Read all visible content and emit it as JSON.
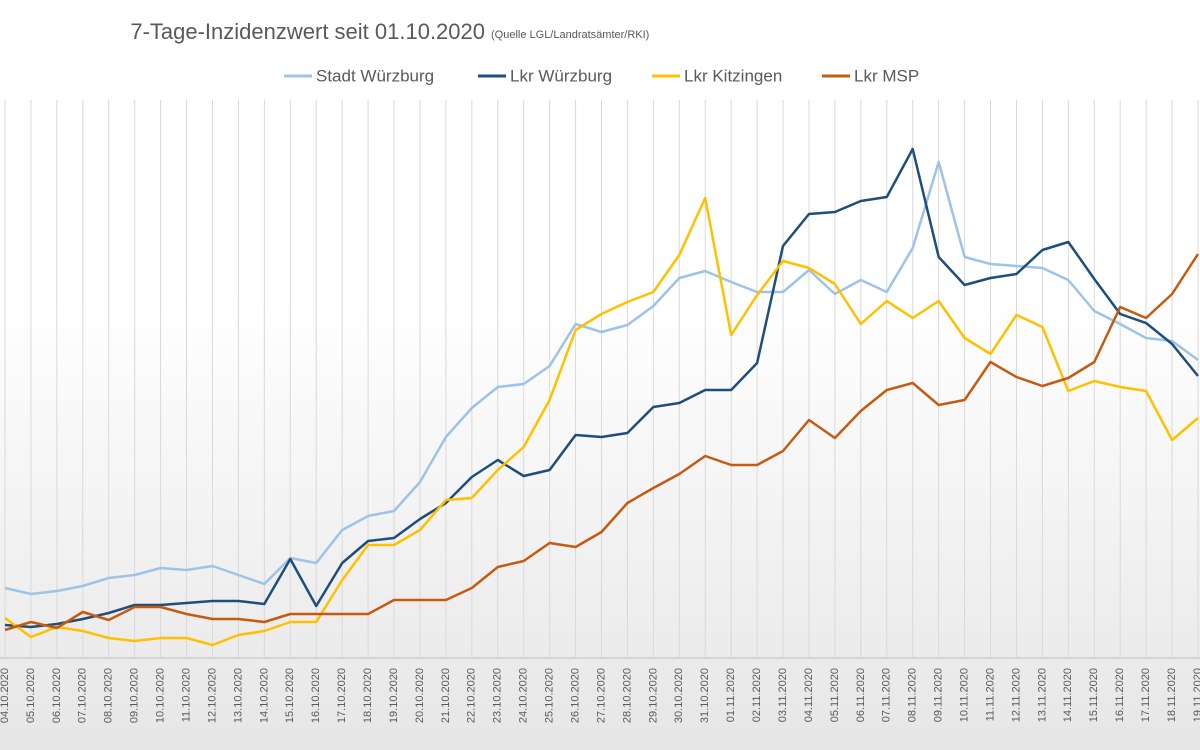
{
  "chart_data": {
    "type": "line",
    "title": "7-Tage-Inzidenzwert seit 01.10.2020",
    "subtitle": "(Quelle LGL/Landratsämter/RKI)",
    "categories": [
      "04.10.2020",
      "05.10.2020",
      "06.10.2020",
      "07.10.2020",
      "08.10.2020",
      "09.10.2020",
      "10.10.2020",
      "11.10.2020",
      "12.10.2020",
      "13.10.2020",
      "14.10.2020",
      "15.10.2020",
      "16.10.2020",
      "17.10.2020",
      "18.10.2020",
      "19.10.2020",
      "20.10.2020",
      "21.10.2020",
      "22.10.2020",
      "23.10.2020",
      "24.10.2020",
      "25.10.2020",
      "26.10.2020",
      "27.10.2020",
      "28.10.2020",
      "29.10.2020",
      "30.10.2020",
      "31.10.2020",
      "01.11.2020",
      "02.11.2020",
      "03.11.2020",
      "04.11.2020",
      "05.11.2020",
      "06.11.2020",
      "07.11.2020",
      "08.11.2020",
      "09.11.2020",
      "10.11.2020",
      "11.11.2020",
      "12.11.2020",
      "13.11.2020",
      "14.11.2020",
      "15.11.2020",
      "16.11.2020",
      "17.11.2020",
      "18.11.2020",
      "19.11.2020"
    ],
    "series": [
      {
        "name": "Stadt Würzburg",
        "color": "#9dc3e6",
        "values": [
          70,
          64,
          67,
          72,
          80,
          83,
          90,
          88,
          92,
          83,
          74,
          100,
          95,
          128,
          142,
          147,
          176,
          221,
          250,
          271,
          274,
          292,
          334,
          326,
          333,
          352,
          380,
          387,
          376,
          366,
          366,
          388,
          364,
          378,
          366,
          410,
          496,
          401,
          394,
          392,
          390,
          378,
          347,
          334,
          320,
          317,
          298
        ]
      },
      {
        "name": "Lkr Würzburg",
        "color": "#1f4e79",
        "values": [
          33,
          31,
          34,
          39,
          45,
          53,
          53,
          55,
          57,
          57,
          54,
          99,
          52,
          95,
          117,
          120,
          139,
          155,
          181,
          198,
          182,
          188,
          223,
          221,
          225,
          251,
          255,
          268,
          268,
          295,
          412,
          444,
          446,
          457,
          461,
          509,
          401,
          373,
          380,
          384,
          408,
          416,
          379,
          344,
          335,
          314,
          282
        ]
      },
      {
        "name": "Lkr Kitzingen",
        "color": "#ffc000",
        "values": [
          40,
          21,
          31,
          27,
          20,
          17,
          20,
          20,
          13,
          23,
          27,
          36,
          36,
          78,
          113,
          113,
          128,
          158,
          160,
          188,
          211,
          258,
          328,
          344,
          356,
          366,
          403,
          460,
          323,
          363,
          397,
          390,
          374,
          334,
          357,
          340,
          357,
          320,
          304,
          343,
          331,
          267,
          277,
          271,
          267,
          218,
          240
        ]
      },
      {
        "name": "Lkr MSP",
        "color": "#c55a11",
        "values": [
          28,
          36,
          30,
          46,
          38,
          51,
          51,
          44,
          39,
          39,
          36,
          44,
          44,
          44,
          44,
          58,
          58,
          58,
          70,
          91,
          97,
          115,
          111,
          126,
          155,
          170,
          184,
          202,
          193,
          193,
          207,
          238,
          220,
          247,
          268,
          275,
          253,
          258,
          296,
          281,
          272,
          280,
          296,
          351,
          340,
          364,
          404
        ]
      }
    ],
    "ylim": [
      0,
      520
    ],
    "grid": true
  }
}
